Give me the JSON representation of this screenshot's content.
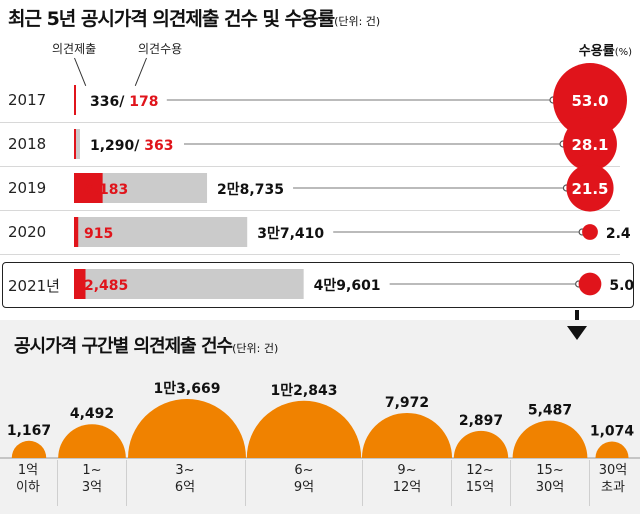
{
  "chart_data": [
    {
      "type": "bar",
      "title": "최근 5년 공시가격 의견제출 건수 및 수용률",
      "unit": "(단위: 건)",
      "legend": {
        "submitted": "의견제출",
        "accepted": "의견수용"
      },
      "rate_header": "수용률",
      "rate_unit": "(%)",
      "categories": [
        "2017",
        "2018",
        "2019",
        "2020",
        "2021년"
      ],
      "series": [
        {
          "name": "의견제출",
          "values": [
            336,
            1290,
            28735,
            37410,
            49601
          ],
          "labels": [
            "336/",
            "1,290/",
            "2만8,735",
            "3만7,410",
            "4만9,601"
          ]
        },
        {
          "name": "의견수용",
          "values": [
            178,
            363,
            6183,
            915,
            2485
          ],
          "labels": [
            "178",
            "363",
            "6,183",
            "915",
            "2,485"
          ]
        }
      ],
      "acceptance_rate": [
        53.0,
        28.1,
        21.5,
        2.4,
        5.0
      ],
      "acceptance_rate_labels": [
        "53.0",
        "28.1",
        "21.5",
        "2.4",
        "5.0"
      ],
      "colors": {
        "accepted": "#e0141b",
        "submitted": "#cbcbcb",
        "rate": "#e0141b"
      }
    },
    {
      "type": "bubble",
      "title": "공시가격 구간별 의견제출 건수",
      "unit": "(단위: 건)",
      "categories": [
        "1억\n이하",
        "1~\n3억",
        "3~\n6억",
        "6~\n9억",
        "9~\n12억",
        "12~\n15억",
        "15~\n30억",
        "30억\n초과"
      ],
      "values": [
        1167,
        4492,
        13669,
        12843,
        7972,
        2897,
        5487,
        1074
      ],
      "value_labels": [
        "1,167",
        "4,492",
        "1만3,669",
        "1만2,843",
        "7,972",
        "2,897",
        "5,487",
        "1,074"
      ],
      "colors": {
        "bubble": "#f08200"
      }
    }
  ]
}
